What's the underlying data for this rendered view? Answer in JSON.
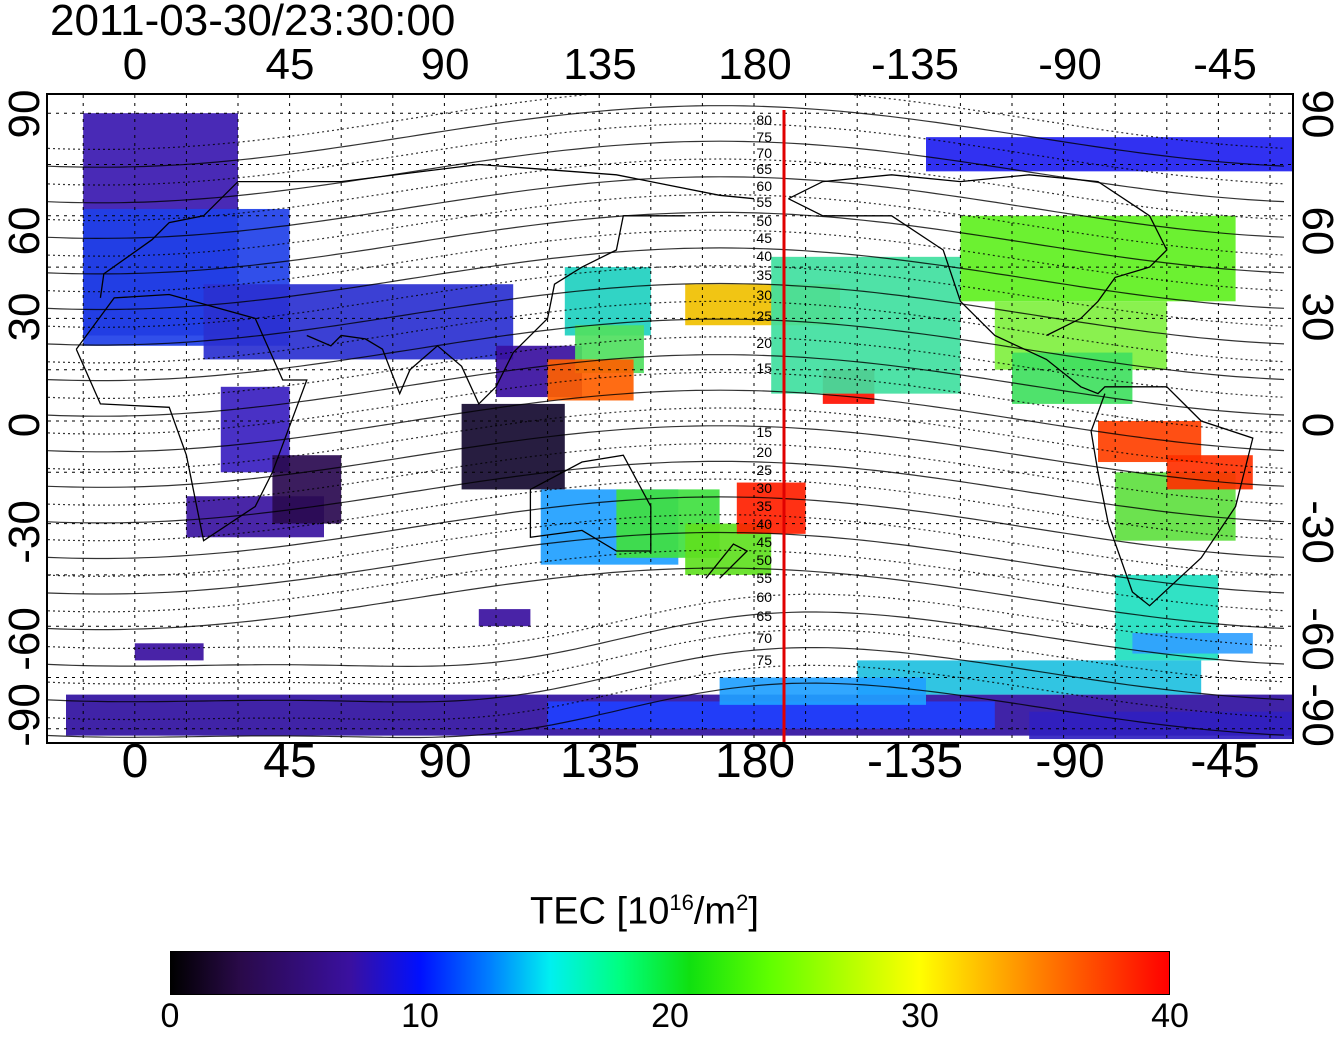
{
  "timestamp": "2011-03-30/23:30:00",
  "lon_top_labels": [
    "0",
    "45",
    "90",
    "135",
    "180",
    "-135",
    "-90",
    "-45"
  ],
  "lon_bottom_labels": [
    "0",
    "45",
    "90",
    "135",
    "180",
    "-135",
    "-90",
    "-45"
  ],
  "lat_left_labels": [
    "90",
    "60",
    "30",
    "0",
    "-30",
    "-60",
    "-90"
  ],
  "lat_right_labels": [
    "90",
    "60",
    "30",
    "0",
    "-30",
    "-60",
    "-90"
  ],
  "meridian_labels": [
    "80",
    "75",
    "70",
    "65",
    "60",
    "55",
    "50",
    "45",
    "40",
    "35",
    "30",
    "25",
    "20",
    "15",
    "15",
    "20",
    "25",
    "30",
    "35",
    "40",
    "45",
    "50",
    "55",
    "60",
    "65",
    "70",
    "75"
  ],
  "colorbar": {
    "title_main": "TEC  [10",
    "title_sup": "16",
    "title_tail": "/m",
    "title_sup2": "2",
    "title_end": "]",
    "min": 0,
    "max": 40,
    "ticks": [
      "0",
      "10",
      "20",
      "30",
      "40"
    ]
  },
  "colors": {
    "meridian_line": "#e00000",
    "frame": "#000000"
  }
}
